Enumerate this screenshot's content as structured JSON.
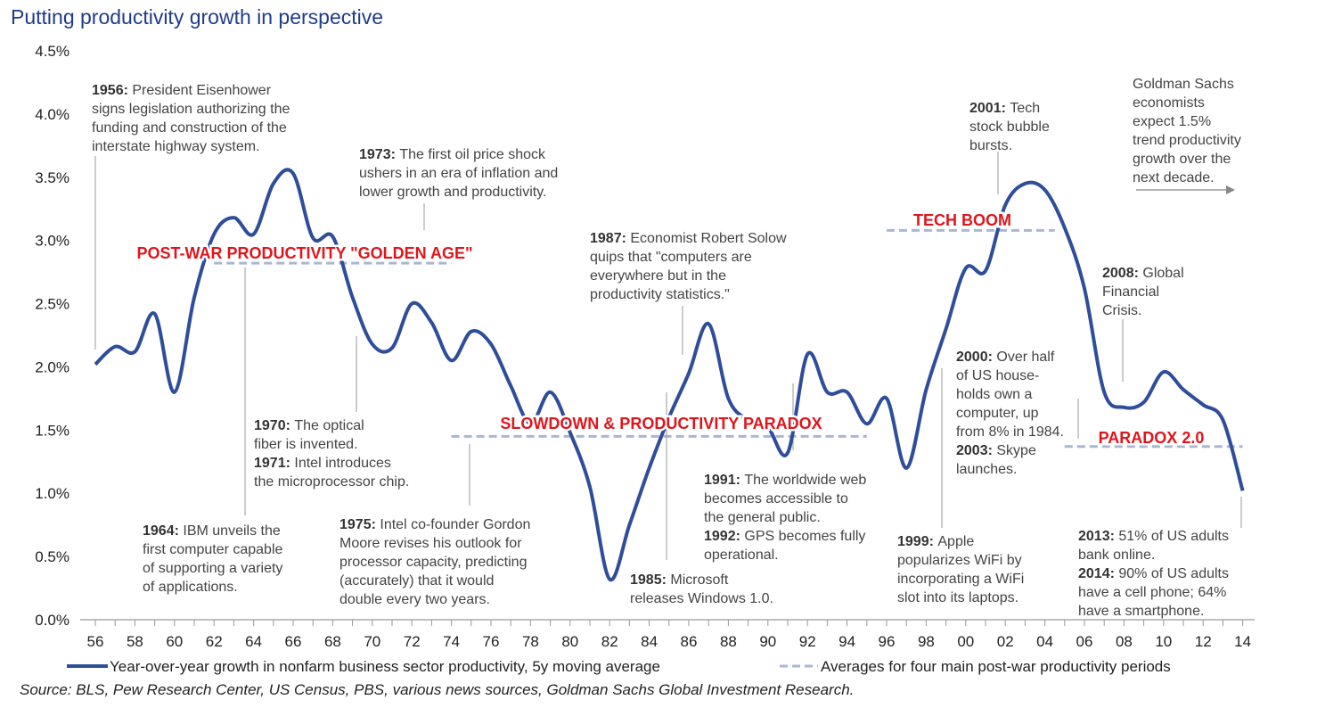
{
  "title": "Putting productivity growth in perspective",
  "source": "Source: BLS, Pew Research Center, US Census, PBS, various news sources, Goldman Sachs Global Investment Research.",
  "legend": {
    "series_label": "Year-over-year growth in nonfarm business sector productivity, 5y moving average",
    "averages_label": "Averages for four main post-war productivity periods"
  },
  "colors": {
    "line": "#2e4d9a",
    "period_avg": "#aab6d3",
    "period_label": "#e0151b"
  },
  "chart_data": {
    "type": "line",
    "xlim": [
      1956,
      2014
    ],
    "ylim": [
      0,
      4.5
    ],
    "yticks": [
      "0.0%",
      "0.5%",
      "1.0%",
      "1.5%",
      "2.0%",
      "2.5%",
      "3.0%",
      "3.5%",
      "4.0%",
      "4.5%"
    ],
    "xticks": [
      "56",
      "58",
      "60",
      "62",
      "64",
      "66",
      "68",
      "70",
      "72",
      "74",
      "76",
      "78",
      "80",
      "82",
      "84",
      "86",
      "88",
      "90",
      "92",
      "94",
      "96",
      "98",
      "00",
      "02",
      "04",
      "06",
      "08",
      "10",
      "12",
      "14"
    ],
    "series": [
      {
        "name": "Year-over-year growth in nonfarm business sector productivity, 5y moving average",
        "x": [
          1956,
          1957,
          1958,
          1959,
          1960,
          1961,
          1962,
          1963,
          1964,
          1965,
          1966,
          1967,
          1968,
          1969,
          1970,
          1971,
          1972,
          1973,
          1974,
          1975,
          1976,
          1977,
          1978,
          1979,
          1980,
          1981,
          1982,
          1983,
          1984,
          1985,
          1986,
          1987,
          1988,
          1989,
          1990,
          1991,
          1992,
          1993,
          1994,
          1995,
          1996,
          1997,
          1998,
          1999,
          2000,
          2001,
          2002,
          2003,
          2004,
          2005,
          2006,
          2007,
          2008,
          2009,
          2010,
          2011,
          2012,
          2013,
          2014
        ],
        "y": [
          2.02,
          2.16,
          2.12,
          2.42,
          1.8,
          2.55,
          3.05,
          3.18,
          3.05,
          3.45,
          3.53,
          3.02,
          3.03,
          2.55,
          2.18,
          2.15,
          2.5,
          2.35,
          2.05,
          2.28,
          2.18,
          1.85,
          1.55,
          1.8,
          1.48,
          1.05,
          0.32,
          0.75,
          1.2,
          1.6,
          1.95,
          2.34,
          1.75,
          1.58,
          1.52,
          1.32,
          2.1,
          1.8,
          1.8,
          1.55,
          1.75,
          1.2,
          1.82,
          2.3,
          2.78,
          2.76,
          3.28,
          3.45,
          3.4,
          3.1,
          2.62,
          1.8,
          1.68,
          1.72,
          1.96,
          1.82,
          1.7,
          1.58,
          1.02
        ]
      }
    ],
    "period_averages": [
      {
        "label": "POST-WAR PRODUCTIVITY \"GOLDEN AGE\"",
        "start": 1962,
        "end": 1974,
        "value": 2.82
      },
      {
        "label": "SLOWDOWN & PRODUCTIVITY PARADOX",
        "start": 1974,
        "end": 1995,
        "value": 1.45
      },
      {
        "label": "TECH BOOM",
        "start": 1996,
        "end": 2004.5,
        "value": 3.08
      },
      {
        "label": "PARADOX 2.0",
        "start": 2005,
        "end": 2014,
        "value": 1.37
      }
    ],
    "annotations": [
      {
        "year_label": "1956:",
        "lines": [
          "President Eisenhower",
          "signs legislation authorizing the",
          "funding and construction of the",
          "interstate highway system."
        ]
      },
      {
        "year_label": "1964:",
        "lines": [
          "IBM unveils the",
          "first computer capable",
          "of supporting a variety",
          "of applications."
        ]
      },
      {
        "year_label": "1970:",
        "lines": [
          "The optical",
          "fiber is invented."
        ],
        "year_label_2": "1971:",
        "lines_2": [
          "Intel introduces",
          "the microprocessor chip."
        ]
      },
      {
        "year_label": "1973:",
        "lines": [
          "The first oil price shock",
          "ushers in an era of inflation and",
          "lower growth and productivity."
        ]
      },
      {
        "year_label": "1975:",
        "lines": [
          "Intel co-founder Gordon",
          "Moore revises his outlook for",
          "processor capacity, predicting",
          "(accurately) that it would",
          "double every two years."
        ]
      },
      {
        "year_label": "1985:",
        "lines": [
          "Microsoft",
          "releases Windows 1.0."
        ]
      },
      {
        "year_label": "1987:",
        "lines": [
          "Economist Robert Solow",
          "quips that \"computers are",
          "everywhere but in the",
          "productivity statistics.\""
        ]
      },
      {
        "year_label": "1991:",
        "lines": [
          "The worldwide web",
          "becomes accessible to",
          "the general public."
        ],
        "year_label_2": "1992:",
        "lines_2": [
          "GPS becomes fully",
          "operational."
        ]
      },
      {
        "year_label": "1999:",
        "lines": [
          "Apple",
          "popularizes WiFi by",
          "incorporating a WiFi",
          "slot into its laptops."
        ]
      },
      {
        "year_label": "2000:",
        "lines": [
          "Over half",
          "of US house-",
          "holds own a",
          "computer, up",
          "from 8% in 1984."
        ],
        "year_label_2": "2003:",
        "lines_2": [
          "Skype",
          "launches."
        ]
      },
      {
        "year_label": "2001:",
        "lines": [
          "Tech",
          "stock bubble",
          "bursts."
        ]
      },
      {
        "year_label": "2008:",
        "lines": [
          "Global",
          "Financial",
          "Crisis."
        ]
      },
      {
        "year_label": "2013:",
        "lines": [
          "51% of US adults",
          "bank online."
        ],
        "year_label_2": "2014:",
        "lines_2": [
          "90% of US adults",
          "have a cell phone; 64%",
          "have a smartphone."
        ]
      },
      {
        "year_label": "",
        "lines": [
          "Goldman Sachs",
          "economists",
          "expect 1.5%",
          "trend productivity",
          "growth over the",
          "next decade."
        ]
      }
    ]
  }
}
